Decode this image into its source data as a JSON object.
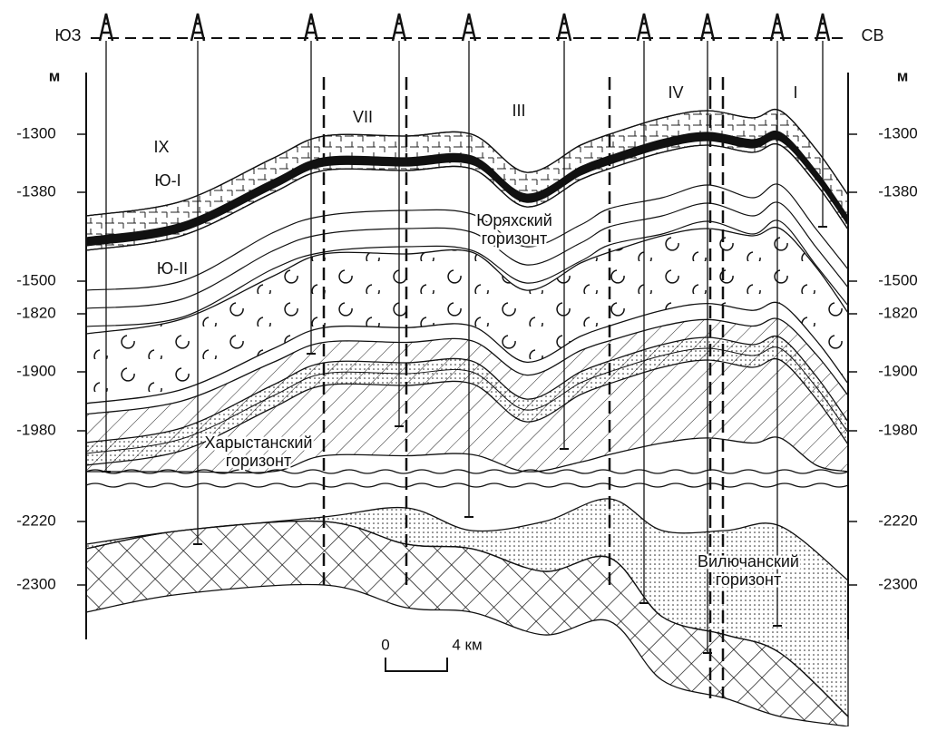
{
  "direction": {
    "left": "ЮЗ",
    "right": "СВ"
  },
  "depth_unit": "м",
  "depth_labels": [
    "-1300",
    "-1380",
    "-1500",
    "-1820",
    "-1900",
    "-1980",
    "-2220",
    "-2300"
  ],
  "blocks": [
    "IX",
    "VII",
    "III",
    "IV",
    "I"
  ],
  "layers": [
    "Ю-I",
    "Ю-II"
  ],
  "horizons": [
    [
      "Юряхский",
      "горизонт"
    ],
    [
      "Харыстанский",
      "горизонт"
    ],
    [
      "Вилючанский",
      "горизонт"
    ]
  ],
  "scale_bar": {
    "start": "0",
    "end": "4 км"
  }
}
